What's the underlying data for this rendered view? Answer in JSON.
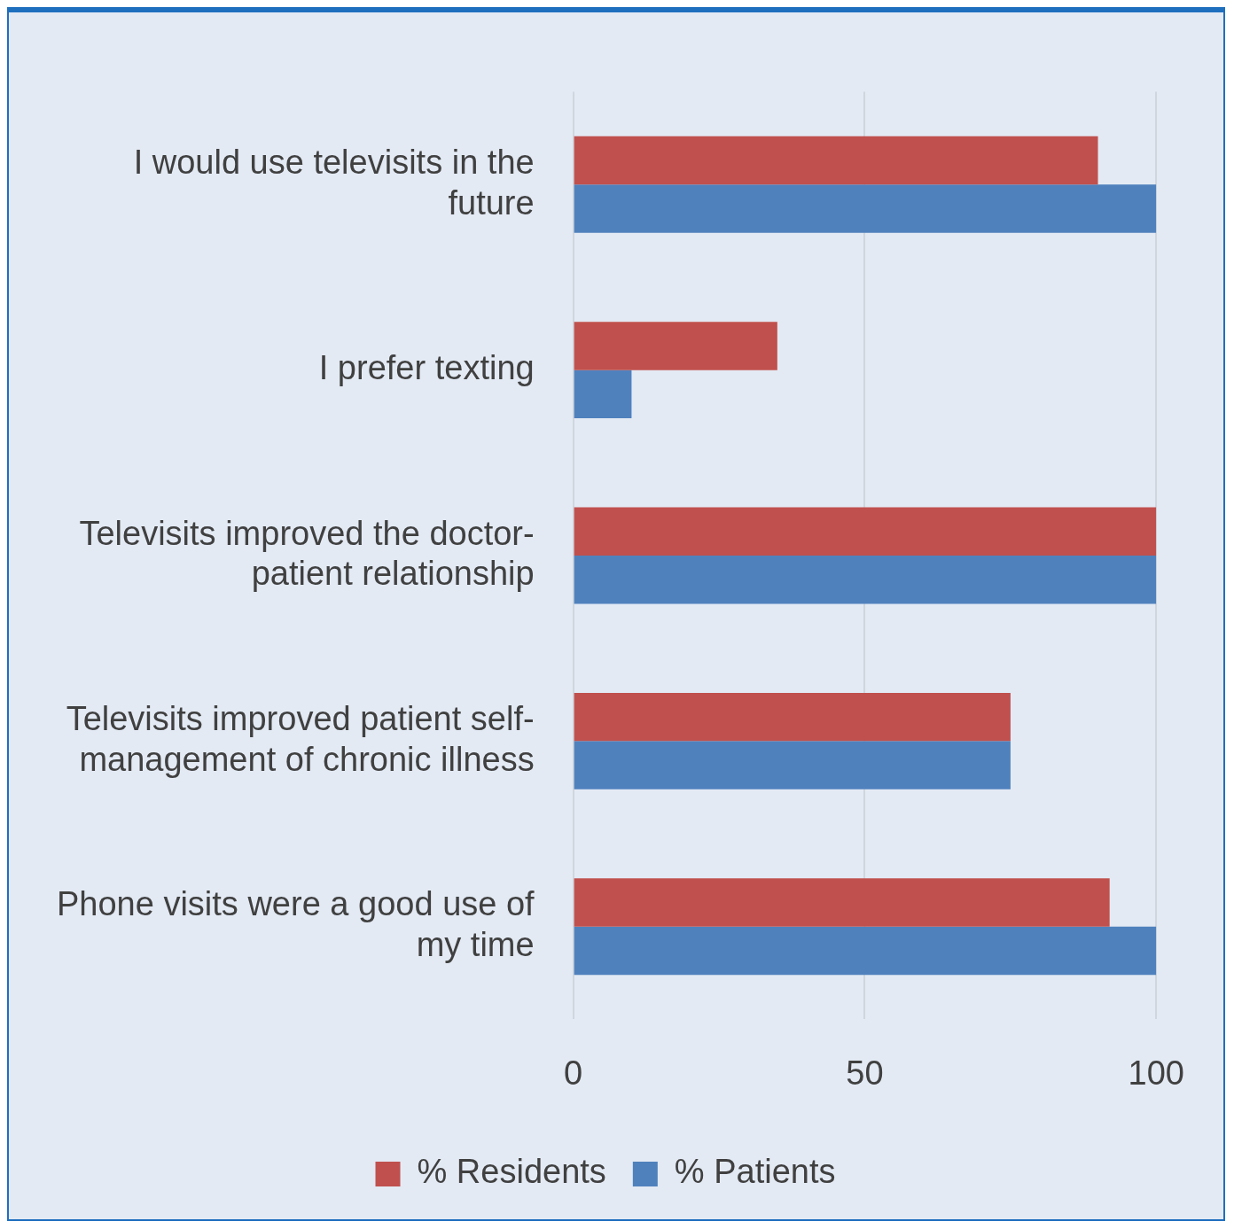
{
  "chart_data": {
    "type": "bar",
    "orientation": "horizontal",
    "categories": [
      "I would use televisits in the future",
      "I prefer texting",
      "Televisits improved the doctor-patient relationship",
      "Televisits improved patient self-management of chronic illness",
      "Phone visits were a good use of my time"
    ],
    "series": [
      {
        "name": "% Residents",
        "color": "#c0504d",
        "values": [
          90,
          35,
          100,
          75,
          92
        ]
      },
      {
        "name": "% Patients",
        "color": "#4f81bd",
        "values": [
          100,
          10,
          100,
          75,
          100
        ]
      }
    ],
    "xlim": [
      0,
      100
    ],
    "xticks": [
      0,
      50,
      100
    ],
    "grid": "x",
    "legend": "bottom"
  }
}
